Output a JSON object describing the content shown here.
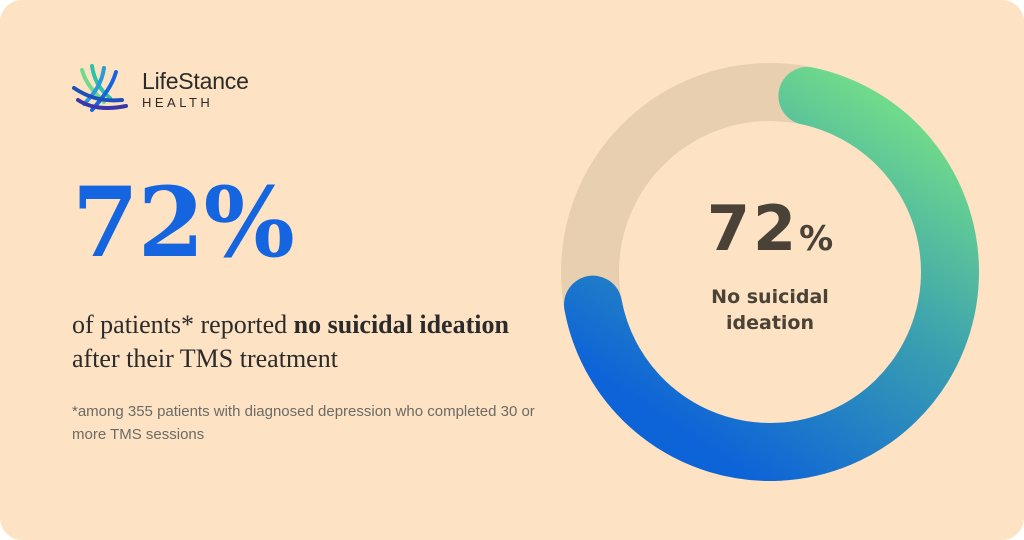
{
  "brand": {
    "name": "LifeStance",
    "sub": "HEALTH"
  },
  "headline": {
    "stat": "72%",
    "text_pre": "of patients* reported ",
    "text_bold": "no suicidal ideation",
    "text_post": " after their TMS treatment"
  },
  "footnote": "*among 355 patients with diagnosed depression who completed 30 or more TMS sessions",
  "chart_data": {
    "type": "pie",
    "style": "donut",
    "values": [
      72,
      28
    ],
    "center_value": "72",
    "center_unit": "%",
    "center_label": "No suicidal ideation"
  },
  "colors": {
    "background": "#fde3c3",
    "accent": "#1565e0",
    "gradient_start": "#6fd98c",
    "gradient_mid": "#3aa0b0",
    "gradient_end": "#0d63d8",
    "track": "#e8cfaf"
  }
}
